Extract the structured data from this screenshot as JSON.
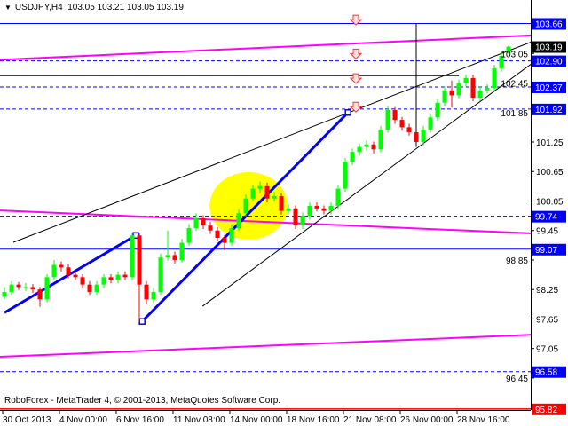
{
  "header": {
    "symbol": "USDJPY,H4",
    "open": "103.05",
    "high": "103.21",
    "low": "103.05",
    "close": "103.19",
    "menu_icon": "triangle-down-icon"
  },
  "footer": {
    "copyright": "RoboForex - MetaTrader 4, © 2001-2013, MetaQuotes Software Corp."
  },
  "colors": {
    "bull": "#00ff00",
    "bear": "#ff0000",
    "level_line": "#0000ff",
    "magenta_line": "#ff00ff",
    "channel_line": "#000000",
    "highlight_zone": "#ffff00",
    "current_price_bg": "#000000",
    "label_bg": "#0000ff",
    "bottom_level": "#ff0000"
  },
  "chart_data": {
    "type": "candlestick",
    "title": "USDJPY,H4",
    "ylim": [
      95.7,
      103.9
    ],
    "grid": false,
    "y_ticks": [
      "103.05",
      "102.45",
      "101.85",
      "101.25",
      "100.65",
      "100.05",
      "99.45",
      "98.85",
      "98.25",
      "97.65",
      "97.05",
      "96.45"
    ],
    "x_ticks": [
      {
        "bar": 0,
        "label": "30 Oct 2013"
      },
      {
        "bar": 8,
        "label": "4 Nov 00:00"
      },
      {
        "bar": 16,
        "label": "6 Nov 16:00"
      },
      {
        "bar": 24,
        "label": "11 Nov 08:00"
      },
      {
        "bar": 32,
        "label": "14 Nov 00:00"
      },
      {
        "bar": 40,
        "label": "18 Nov 16:00"
      },
      {
        "bar": 48,
        "label": "21 Nov 08:00"
      },
      {
        "bar": 56,
        "label": "26 Nov 00:00"
      },
      {
        "bar": 64,
        "label": "28 Nov 16:00"
      }
    ],
    "ohlc": [
      [
        98.1,
        98.3,
        98.05,
        98.2
      ],
      [
        98.2,
        98.42,
        98.14,
        98.35
      ],
      [
        98.35,
        98.4,
        98.24,
        98.3
      ],
      [
        98.3,
        98.38,
        98.22,
        98.3
      ],
      [
        98.3,
        98.36,
        98.18,
        98.25
      ],
      [
        98.25,
        98.3,
        97.9,
        98.05
      ],
      [
        98.05,
        98.56,
        97.99,
        98.5
      ],
      [
        98.5,
        98.85,
        98.44,
        98.75
      ],
      [
        98.75,
        98.82,
        98.62,
        98.7
      ],
      [
        98.7,
        98.76,
        98.48,
        98.55
      ],
      [
        98.55,
        98.62,
        98.44,
        98.5
      ],
      [
        98.5,
        98.56,
        98.28,
        98.35
      ],
      [
        98.35,
        98.42,
        98.14,
        98.2
      ],
      [
        98.2,
        98.42,
        98.14,
        98.35
      ],
      [
        98.35,
        98.56,
        98.28,
        98.5
      ],
      [
        98.5,
        98.56,
        98.38,
        98.45
      ],
      [
        98.45,
        98.62,
        98.38,
        98.55
      ],
      [
        98.55,
        98.62,
        98.44,
        98.5
      ],
      [
        98.5,
        99.4,
        98.44,
        99.35
      ],
      [
        99.35,
        99.4,
        97.6,
        98.35
      ],
      [
        98.35,
        98.42,
        97.95,
        98.05
      ],
      [
        98.05,
        98.28,
        97.98,
        98.2
      ],
      [
        98.2,
        98.98,
        98.14,
        98.9
      ],
      [
        98.9,
        99.45,
        98.84,
        98.95
      ],
      [
        98.95,
        99.02,
        98.78,
        98.85
      ],
      [
        98.85,
        99.28,
        98.8,
        99.2
      ],
      [
        99.2,
        99.58,
        99.14,
        99.5
      ],
      [
        99.5,
        99.8,
        99.44,
        99.7
      ],
      [
        99.7,
        99.76,
        99.48,
        99.55
      ],
      [
        99.55,
        99.62,
        99.38,
        99.45
      ],
      [
        99.45,
        99.52,
        99.24,
        99.3
      ],
      [
        99.3,
        99.36,
        99.05,
        99.2
      ],
      [
        99.2,
        99.58,
        99.14,
        99.5
      ],
      [
        99.5,
        99.88,
        99.44,
        99.8
      ],
      [
        99.8,
        100.18,
        99.74,
        100.1
      ],
      [
        100.1,
        100.38,
        100.04,
        100.3
      ],
      [
        100.3,
        100.45,
        100.2,
        100.35
      ],
      [
        100.35,
        100.42,
        100.02,
        100.1
      ],
      [
        100.1,
        100.24,
        100.04,
        100.15
      ],
      [
        100.15,
        100.22,
        99.78,
        99.85
      ],
      [
        99.85,
        99.98,
        99.78,
        99.9
      ],
      [
        99.9,
        99.96,
        99.48,
        99.55
      ],
      [
        99.55,
        99.82,
        99.48,
        99.75
      ],
      [
        99.75,
        100.02,
        99.68,
        99.95
      ],
      [
        99.95,
        100.02,
        99.84,
        99.9
      ],
      [
        99.9,
        99.96,
        99.78,
        99.85
      ],
      [
        99.85,
        100.02,
        99.78,
        99.95
      ],
      [
        99.95,
        100.38,
        99.88,
        100.3
      ],
      [
        100.3,
        100.92,
        100.24,
        100.85
      ],
      [
        100.85,
        101.12,
        100.78,
        101.05
      ],
      [
        101.05,
        101.22,
        100.98,
        101.15
      ],
      [
        101.15,
        101.28,
        101.08,
        101.2
      ],
      [
        101.2,
        101.26,
        101.02,
        101.1
      ],
      [
        101.1,
        101.58,
        101.04,
        101.5
      ],
      [
        101.5,
        101.98,
        101.44,
        101.9
      ],
      [
        101.9,
        101.96,
        101.62,
        101.7
      ],
      [
        101.7,
        101.76,
        101.48,
        101.55
      ],
      [
        101.55,
        101.62,
        101.38,
        101.45
      ],
      [
        101.45,
        103.66,
        101.15,
        101.25
      ],
      [
        101.25,
        101.58,
        101.18,
        101.5
      ],
      [
        101.5,
        101.82,
        101.44,
        101.75
      ],
      [
        101.75,
        102.12,
        101.68,
        102.05
      ],
      [
        102.05,
        102.38,
        101.98,
        102.3
      ],
      [
        102.3,
        102.5,
        101.95,
        102.2
      ],
      [
        102.2,
        102.52,
        102.14,
        102.45
      ],
      [
        102.45,
        102.62,
        102.38,
        102.55
      ],
      [
        102.55,
        102.62,
        102.08,
        102.15
      ],
      [
        102.15,
        102.38,
        102.08,
        102.3
      ],
      [
        102.3,
        102.42,
        102.24,
        102.35
      ],
      [
        102.35,
        102.82,
        102.28,
        102.75
      ],
      [
        102.75,
        103.08,
        102.68,
        103.0
      ],
      [
        103.05,
        103.21,
        103.05,
        103.19
      ]
    ],
    "levels": [
      {
        "price": 103.66,
        "label": "103.66",
        "style": "solid",
        "color": "#0000ff"
      },
      {
        "price": 102.9,
        "label": "102.90",
        "style": "dashed",
        "color": "#0000ff"
      },
      {
        "price": 102.37,
        "label": "102.37",
        "style": "dashed",
        "color": "#0000ff"
      },
      {
        "price": 101.92,
        "label": "101.92",
        "style": "dashed",
        "color": "#0000ff"
      },
      {
        "price": 99.74,
        "label": "99.74",
        "style": "dashed",
        "color": "#0000ff"
      },
      {
        "price": 99.07,
        "label": "99.07",
        "style": "solid",
        "color": "#0000ff"
      },
      {
        "price": 96.58,
        "label": "96.58",
        "style": "dashed",
        "color": "#0000ff"
      },
      {
        "price": 95.82,
        "label": "95.82",
        "style": "solid",
        "color": "#ff0000"
      }
    ],
    "current_price": {
      "price": 103.19,
      "label": "103.19"
    },
    "trendlines": [
      {
        "name": "magenta-upper",
        "from": [
          -1,
          102.92
        ],
        "to": [
          74.5,
          103.42
        ],
        "color": "#ff00ff",
        "width": 2
      },
      {
        "name": "magenta-middle",
        "from": [
          -1,
          99.86
        ],
        "to": [
          74.5,
          99.39
        ],
        "color": "#ff00ff",
        "width": 2
      },
      {
        "name": "magenta-lower",
        "from": [
          -1,
          96.88
        ],
        "to": [
          74.5,
          97.33
        ],
        "color": "#ff00ff",
        "width": 2
      },
      {
        "name": "channel-upper",
        "from": [
          1.25,
          99.21
        ],
        "to": [
          74.5,
          103.3
        ],
        "color": "#000000",
        "width": 1
      },
      {
        "name": "channel-lower",
        "from": [
          27.9,
          97.91
        ],
        "to": [
          74.5,
          102.87
        ],
        "color": "#000000",
        "width": 1
      },
      {
        "name": "resistance-horizontal",
        "from": [
          -1,
          102.6
        ],
        "to": [
          64,
          102.6
        ],
        "color": "#000000",
        "width": 1
      },
      {
        "name": "blue-wave-1",
        "from": [
          0,
          97.78
        ],
        "to": [
          18.5,
          99.35
        ],
        "color": "#0000ff",
        "width": 3
      },
      {
        "name": "blue-wave-2",
        "from": [
          19.4,
          97.6
        ],
        "to": [
          48.4,
          101.85
        ],
        "color": "#0000ff",
        "width": 3
      }
    ],
    "highlight_zone": {
      "center": [
        34.4,
        99.95
      ],
      "color": "#ffff00"
    },
    "target_arrows": [
      {
        "bar": 49.5,
        "price": 103.72
      },
      {
        "bar": 49.5,
        "price": 103.03
      },
      {
        "bar": 49.5,
        "price": 102.53
      },
      {
        "bar": 49.5,
        "price": 101.95
      }
    ]
  }
}
